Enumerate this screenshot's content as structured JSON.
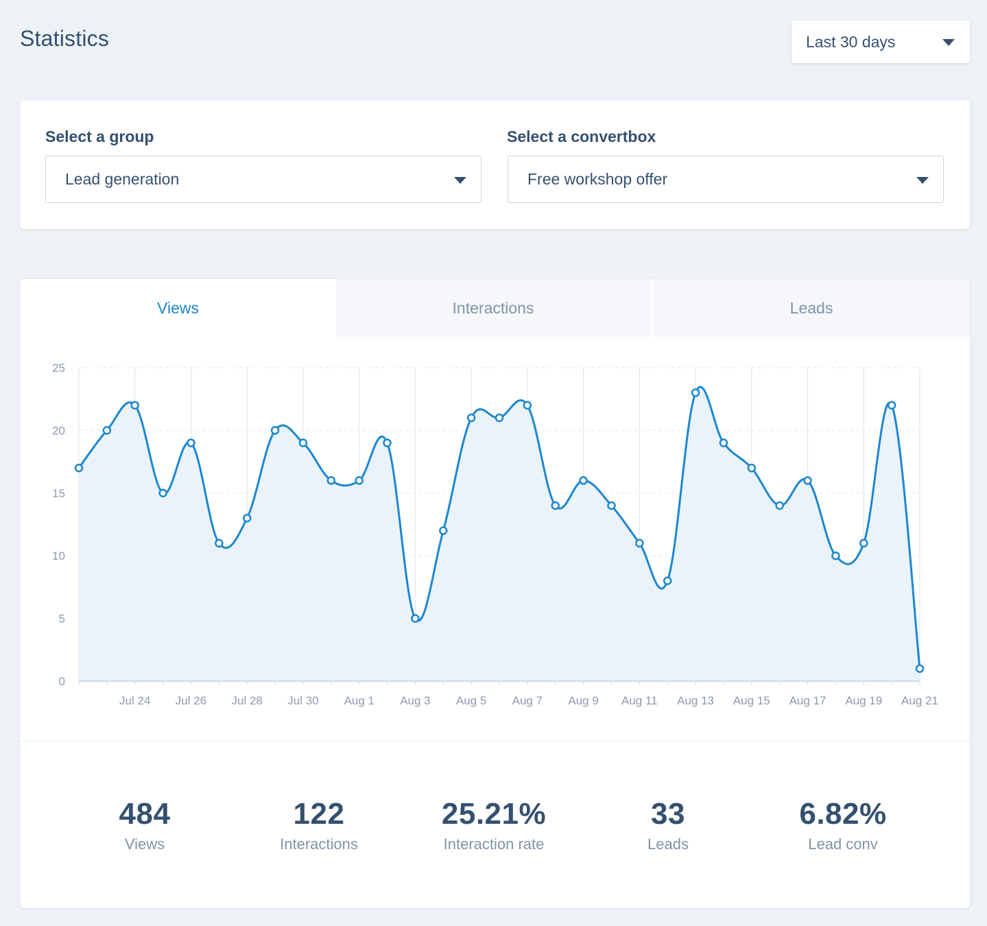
{
  "header": {
    "title": "Statistics",
    "date_range": "Last 30 days"
  },
  "filters": {
    "group_label": "Select a group",
    "group_value": "Lead generation",
    "convertbox_label": "Select a convertbox",
    "convertbox_value": "Free workshop offer"
  },
  "tabs": [
    {
      "label": "Views",
      "active": true
    },
    {
      "label": "Interactions",
      "active": false
    },
    {
      "label": "Leads",
      "active": false
    }
  ],
  "colors": {
    "accent": "#1c87cf",
    "area_fill": "#eaf2fa",
    "text": "#34506f",
    "muted": "#7f93a9"
  },
  "chart_data": {
    "type": "area",
    "title": "",
    "xlabel": "",
    "ylabel": "",
    "ylim": [
      0,
      25
    ],
    "yticks": [
      0,
      5,
      10,
      15,
      20,
      25
    ],
    "x": [
      "Jul 22",
      "Jul 23",
      "Jul 24",
      "Jul 25",
      "Jul 26",
      "Jul 27",
      "Jul 28",
      "Jul 29",
      "Jul 30",
      "Jul 31",
      "Aug 1",
      "Aug 2",
      "Aug 3",
      "Aug 4",
      "Aug 5",
      "Aug 6",
      "Aug 7",
      "Aug 8",
      "Aug 9",
      "Aug 10",
      "Aug 11",
      "Aug 12",
      "Aug 13",
      "Aug 14",
      "Aug 15",
      "Aug 16",
      "Aug 17",
      "Aug 18",
      "Aug 19",
      "Aug 20",
      "Aug 21"
    ],
    "xtick_labels": [
      "Jul 24",
      "Jul 26",
      "Jul 28",
      "Jul 30",
      "Aug 1",
      "Aug 3",
      "Aug 5",
      "Aug 7",
      "Aug 9",
      "Aug 11",
      "Aug 13",
      "Aug 15",
      "Aug 17",
      "Aug 19",
      "Aug 21"
    ],
    "series": [
      {
        "values": [
          17,
          20,
          22,
          15,
          19,
          11,
          13,
          20,
          19,
          16,
          16,
          19,
          5,
          12,
          21,
          21,
          22,
          14,
          16,
          14,
          11,
          8,
          23,
          19,
          17,
          14,
          16,
          10,
          11,
          22,
          1
        ]
      }
    ],
    "grid": true
  },
  "stats": [
    {
      "value": "484",
      "label": "Views"
    },
    {
      "value": "122",
      "label": "Interactions"
    },
    {
      "value": "25.21%",
      "label": "Interaction rate"
    },
    {
      "value": "33",
      "label": "Leads"
    },
    {
      "value": "6.82%",
      "label": "Lead conv"
    }
  ]
}
